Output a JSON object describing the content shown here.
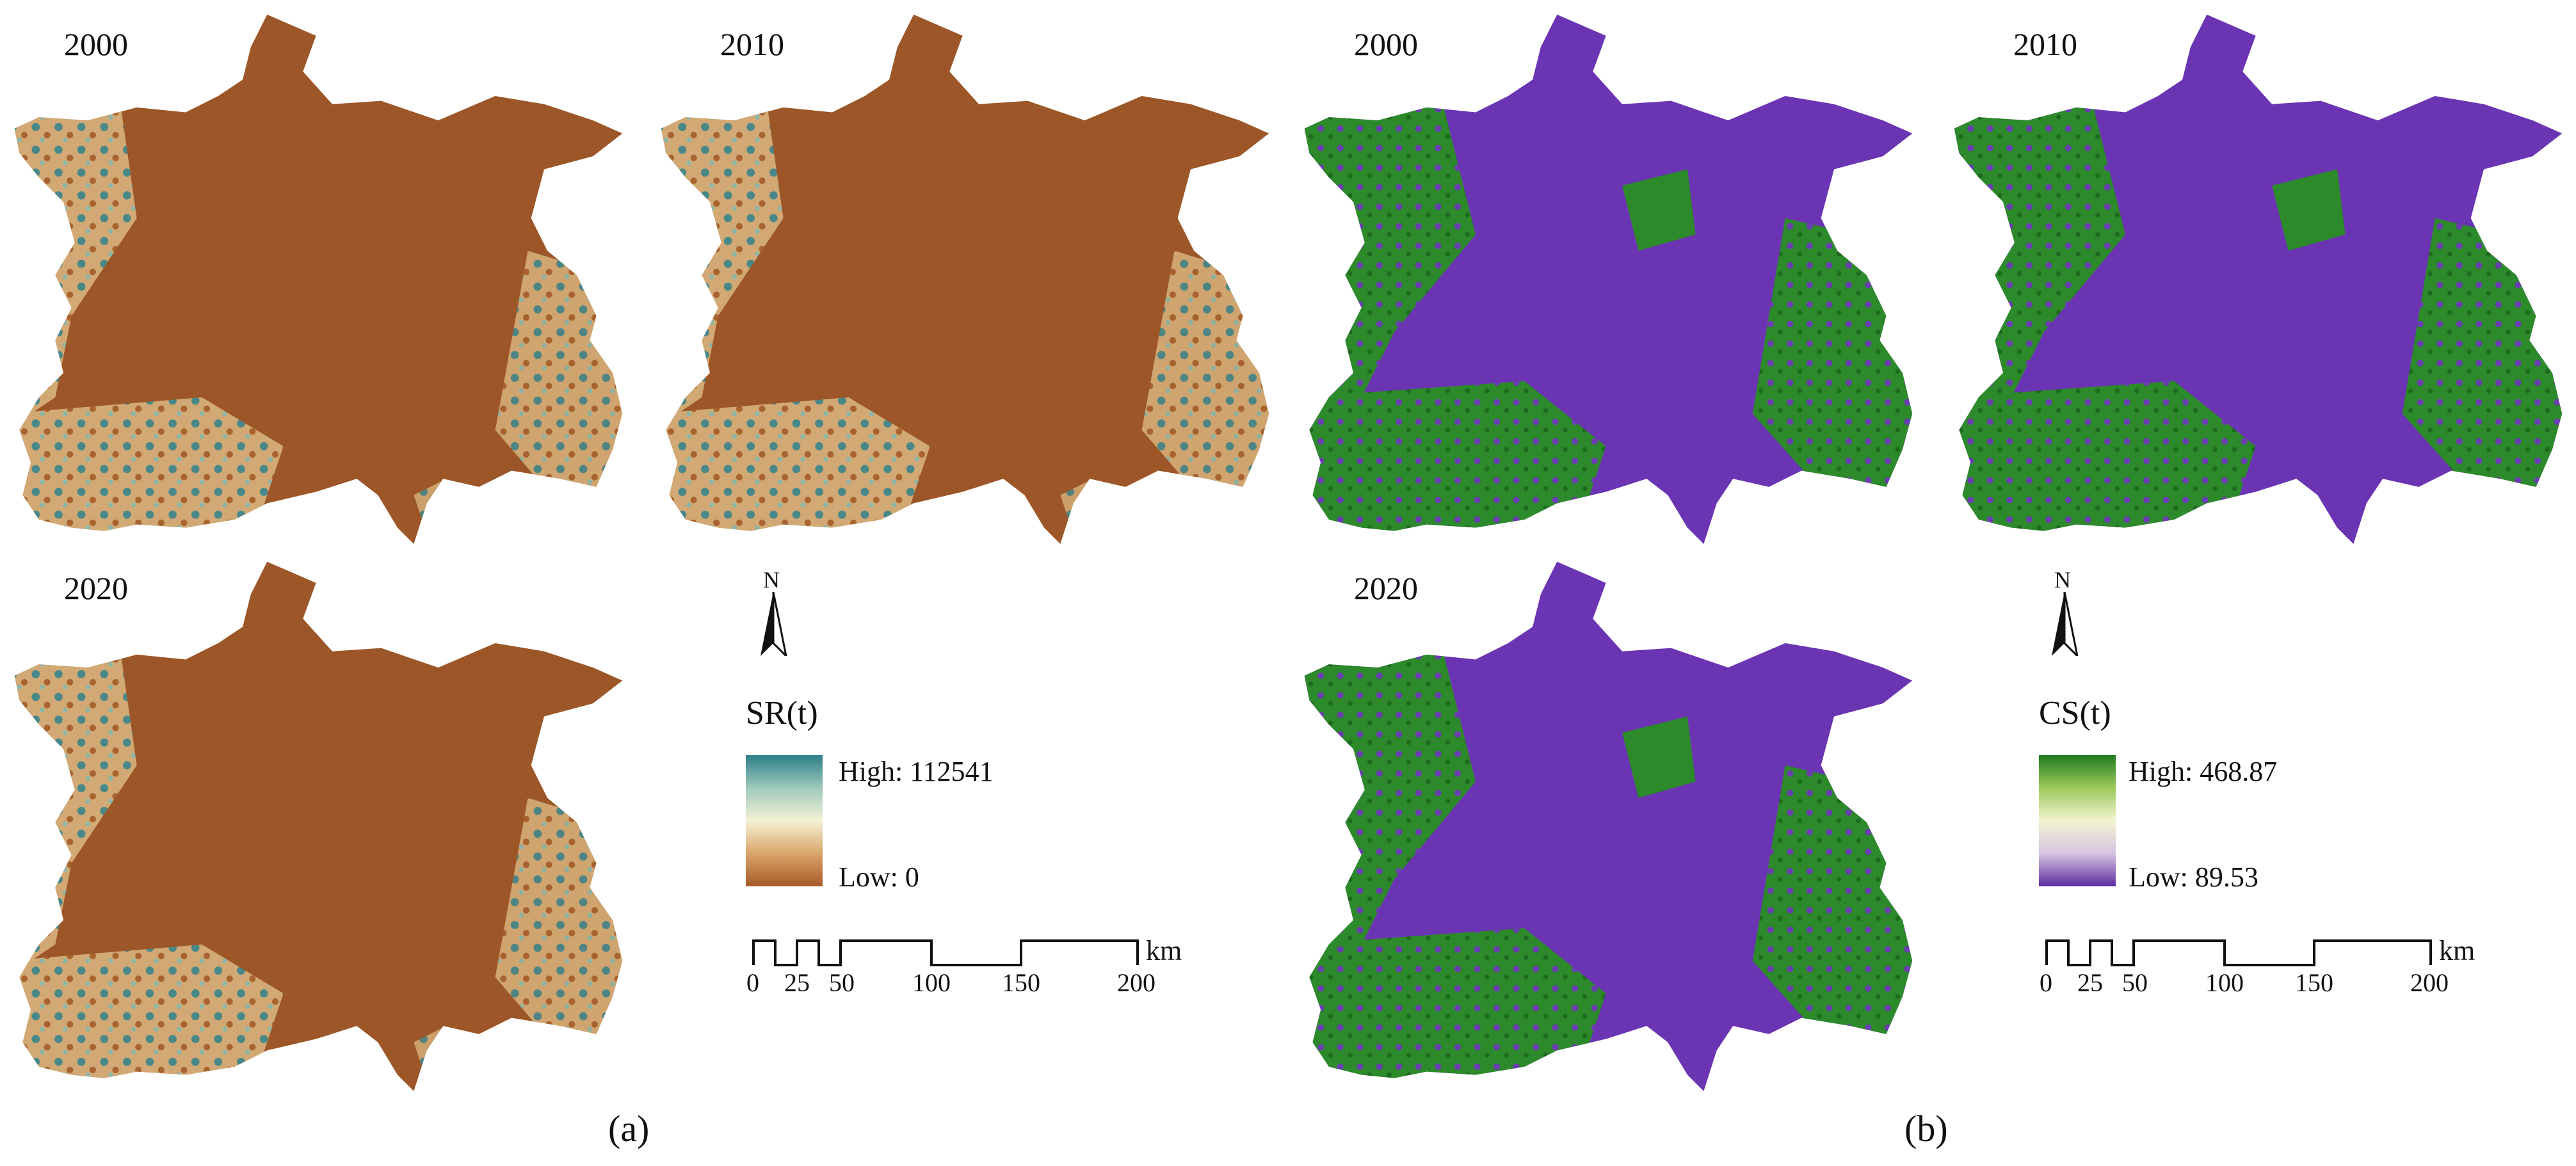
{
  "panels": [
    {
      "label": "(a)",
      "legend_title": "SR(t)",
      "legend_high": "High: 112541",
      "legend_low": "Low: 0",
      "colors": {
        "base": "#9c5627",
        "low": "#a85a28",
        "mid1": "#d9b27a",
        "mid2": "#f5f1d5",
        "high": "#2e7f8a"
      },
      "maps": [
        {
          "year": "2000"
        },
        {
          "year": "2010"
        },
        {
          "year": "2020"
        }
      ]
    },
    {
      "label": "(b)",
      "legend_title": "CS(t)",
      "legend_high": "High: 468.87",
      "legend_low": "Low: 89.53",
      "colors": {
        "base": "#6a34b3",
        "low": "#5b2ca0",
        "mid1": "#e9d9ea",
        "mid2": "#eef5c9",
        "high": "#1f7a1f"
      },
      "maps": [
        {
          "year": "2000"
        },
        {
          "year": "2010"
        },
        {
          "year": "2020"
        }
      ]
    }
  ],
  "scale_bar": {
    "ticks": [
      "0",
      "25",
      "50",
      "100",
      "150",
      "200"
    ],
    "unit": "km"
  },
  "north_arrow": {
    "letter": "N"
  }
}
